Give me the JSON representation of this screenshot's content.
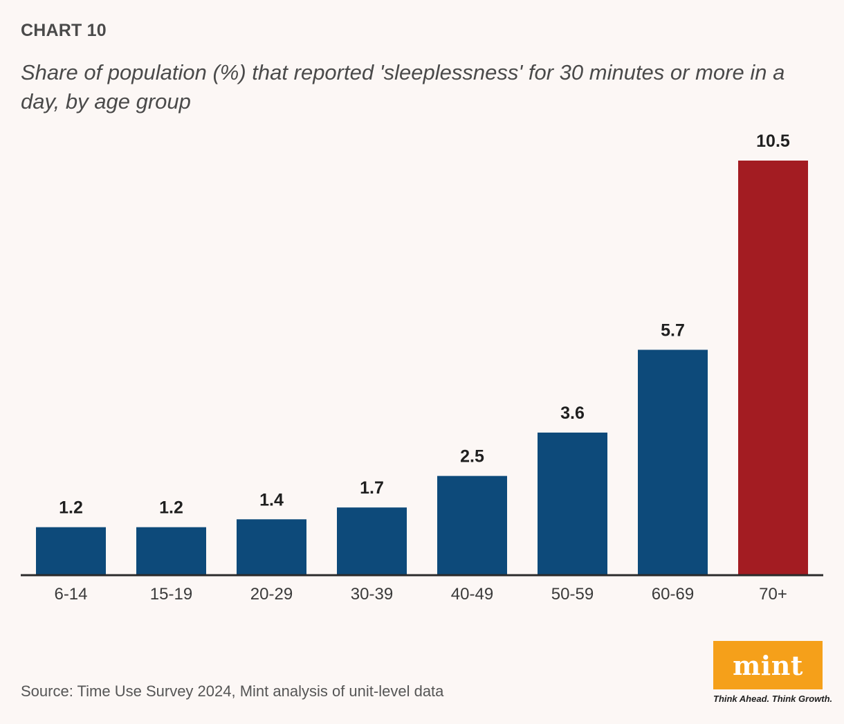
{
  "header": {
    "chart_label": "CHART 10",
    "subtitle": "Share of population (%) that reported 'sleeplessness' for 30 minutes or more in a day, by age group"
  },
  "footer": {
    "source": "Source: Time Use Survey 2024, Mint analysis of unit-level data"
  },
  "logo": {
    "text": "mint",
    "tagline": "Think Ahead. Think Growth.",
    "color": "#f5a01a"
  },
  "colors": {
    "bar": "#0d4a7a",
    "highlight": "#a31c22",
    "axis": "#2b2b2b"
  },
  "chart_data": {
    "type": "bar",
    "categories": [
      "6-14",
      "15-19",
      "20-29",
      "30-39",
      "40-49",
      "50-59",
      "60-69",
      "70+"
    ],
    "values": [
      1.2,
      1.2,
      1.4,
      1.7,
      2.5,
      3.6,
      5.7,
      10.5
    ],
    "value_labels": [
      "1.2",
      "1.2",
      "1.4",
      "1.7",
      "2.5",
      "3.6",
      "5.7",
      "10.5"
    ],
    "highlight_index": 7,
    "title": "Share of population (%) that reported 'sleeplessness' for 30 minutes or more in a day, by age group",
    "xlabel": "",
    "ylabel": "",
    "ylim": [
      0,
      10.5
    ],
    "grid": false,
    "legend": "none"
  }
}
